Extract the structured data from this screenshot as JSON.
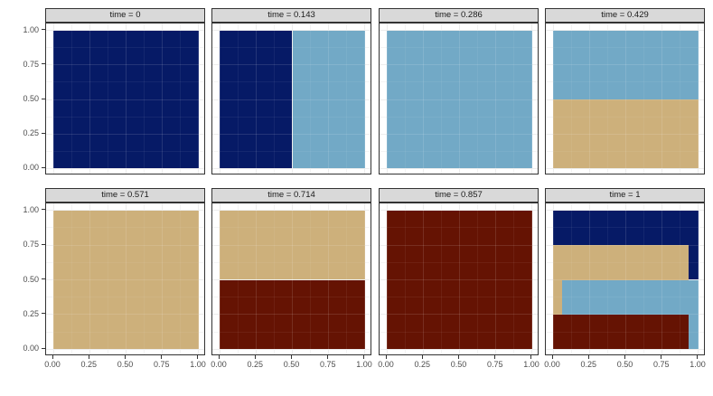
{
  "chart_data": {
    "type": "heatmap",
    "title": "",
    "xlabel": "",
    "ylabel": "",
    "facet_variable": "time",
    "layout": {
      "rows": 2,
      "cols": 4,
      "grid": "on",
      "legend": "none"
    },
    "xlim": [
      0,
      1
    ],
    "ylim": [
      0,
      1
    ],
    "x_ticks": [
      {
        "v": 0,
        "label": "0.00"
      },
      {
        "v": 0.25,
        "label": "0.25"
      },
      {
        "v": 0.5,
        "label": "0.50"
      },
      {
        "v": 0.75,
        "label": "0.75"
      },
      {
        "v": 1,
        "label": "1.00"
      }
    ],
    "y_ticks": [
      {
        "v": 1,
        "label": "1.00"
      },
      {
        "v": 0.75,
        "label": "0.75"
      },
      {
        "v": 0.5,
        "label": "0.50"
      },
      {
        "v": 0.25,
        "label": "0.25"
      },
      {
        "v": 0,
        "label": "0.00"
      }
    ],
    "minor_grid": [
      0.125,
      0.375,
      0.625,
      0.875
    ],
    "major_grid": [
      0,
      0.25,
      0.5,
      0.75,
      1
    ],
    "colors": {
      "navy": "#061A66",
      "lightblue": "#72A9C6",
      "tan": "#CDB07B",
      "darkred": "#651303"
    },
    "style": {
      "strip_bg": "#D9D9D9",
      "border": "#333333",
      "grid_major": "#EBEBEB",
      "grid_minor": "#F4F4F4",
      "axis_text": "#4D4D4D",
      "strip_text": "#1A1A1A",
      "tick_color": "#333333"
    },
    "facets": [
      {
        "label": "time = 0",
        "rects": [
          {
            "color": "navy",
            "x0": 0,
            "x1": 1,
            "y0": 0,
            "y1": 1
          }
        ]
      },
      {
        "label": "time = 0.143",
        "rects": [
          {
            "color": "navy",
            "x0": 0,
            "x1": 0.5,
            "y0": 0,
            "y1": 1
          },
          {
            "color": "lightblue",
            "x0": 0.5,
            "x1": 1,
            "y0": 0,
            "y1": 1
          }
        ]
      },
      {
        "label": "time = 0.286",
        "rects": [
          {
            "color": "lightblue",
            "x0": 0,
            "x1": 1,
            "y0": 0,
            "y1": 1
          }
        ]
      },
      {
        "label": "time = 0.429",
        "rects": [
          {
            "color": "lightblue",
            "x0": 0,
            "x1": 1,
            "y0": 0.5,
            "y1": 1
          },
          {
            "color": "tan",
            "x0": 0,
            "x1": 1,
            "y0": 0,
            "y1": 0.5
          }
        ]
      },
      {
        "label": "time = 0.571",
        "rects": [
          {
            "color": "tan",
            "x0": 0,
            "x1": 1,
            "y0": 0,
            "y1": 1
          }
        ]
      },
      {
        "label": "time = 0.714",
        "rects": [
          {
            "color": "tan",
            "x0": 0,
            "x1": 1,
            "y0": 0.5,
            "y1": 1
          },
          {
            "color": "darkred",
            "x0": 0,
            "x1": 1,
            "y0": 0,
            "y1": 0.5
          }
        ]
      },
      {
        "label": "time = 0.857",
        "rects": [
          {
            "color": "darkred",
            "x0": 0,
            "x1": 1,
            "y0": 0,
            "y1": 1
          }
        ]
      },
      {
        "label": "time = 1",
        "rects": [
          {
            "color": "navy",
            "x0": 0,
            "x1": 1,
            "y0": 0.5,
            "y1": 1
          },
          {
            "color": "tan",
            "x0": 0,
            "x1": 0.93,
            "y0": 0.25,
            "y1": 0.75
          },
          {
            "color": "lightblue",
            "x0": 0.06,
            "x1": 1,
            "y0": 0,
            "y1": 0.5
          },
          {
            "color": "darkred",
            "x0": 0,
            "x1": 0.93,
            "y0": 0,
            "y1": 0.25
          }
        ]
      }
    ]
  }
}
